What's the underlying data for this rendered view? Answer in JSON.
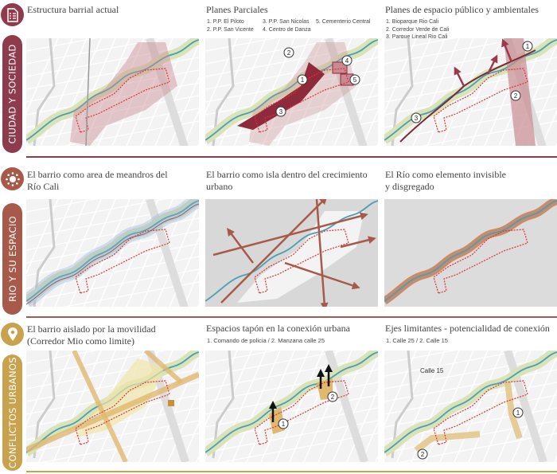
{
  "colors": {
    "row1": "#8e3b4e",
    "row2": "#a85a4a",
    "row3": "#c9a24d",
    "river": "#4a9fb5",
    "green": "#d9e3b8",
    "outline": "#e03030"
  },
  "rows": [
    {
      "label": "CIUDAD Y SOCIEDAD",
      "icon": "document-checklist-icon",
      "panels": [
        {
          "title": "Estructura barrial actual"
        },
        {
          "title": "Planes Parciales",
          "list": [
            "1. P.P. El Piloto",
            "2. P.P. San Vicente",
            "3. P.P. San Nicolas",
            "4. Centro de Danza",
            "5. Cementerio Central"
          ],
          "markers": [
            "1",
            "2",
            "3",
            "4",
            "5"
          ]
        },
        {
          "title": "Planes de espacio público y ambientales",
          "list": [
            "1. Bioparque Rio Cali",
            "2. Corredor Verde de Cali",
            "3. Parque Lineal Rio Cali"
          ],
          "markers": [
            "1",
            "2",
            "3"
          ]
        }
      ]
    },
    {
      "label": "RIO Y SU ESPACIO",
      "icon": "network-nodes-icon",
      "panels": [
        {
          "title_lines": [
            "El barrio como area de meandros del",
            "Río Cali"
          ]
        },
        {
          "title_lines": [
            "El barrio como isla dentro del crecimiento",
            "urbano"
          ]
        },
        {
          "title_lines": [
            "El Río como elemento invisible",
            "y disgregado"
          ]
        }
      ]
    },
    {
      "label": "CONFLICTOS URBANOS",
      "icon": "map-pin-icon",
      "panels": [
        {
          "title_lines": [
            "El barrio aislado por la movilidad",
            "(Corredor Mio como limite)"
          ]
        },
        {
          "title": "Espacios tapón en la conexión urbana",
          "subtitle": "1. Comando de policia  /  2. Manzana calle 25",
          "markers": [
            "1",
            "2"
          ]
        },
        {
          "title": "Ejes limitantes - potencialidad de conexión",
          "subtitle": "1. Calle 25  /  2. Calle 15",
          "street_label": "Calle 15",
          "markers": [
            "1",
            "2"
          ]
        }
      ]
    }
  ]
}
